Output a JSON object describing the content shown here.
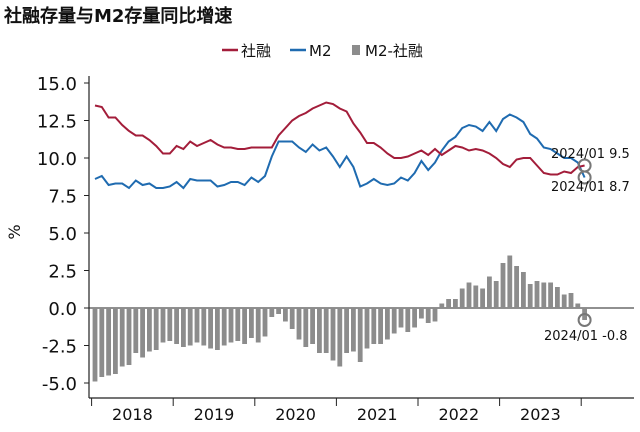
{
  "title": "社融存量与M2存量同比增速",
  "chart_data": {
    "type": "line+bar",
    "title": "社融存量与M2存量同比增速",
    "ylabel": "%",
    "ylim": [
      -5.0,
      15.0
    ],
    "yticks": [
      15.0,
      12.5,
      10.0,
      7.5,
      5.0,
      2.5,
      0.0,
      -2.5,
      -5.0
    ],
    "ytick_labels": [
      "15.0",
      "12.5",
      "10.0",
      "7.5",
      "5.0",
      "2.5",
      "0.0",
      "-2.5",
      "-5.0"
    ],
    "year_labels": [
      "2018",
      "2019",
      "2020",
      "2021",
      "2022",
      "2023"
    ],
    "x_start": "2018/01",
    "x_end": "2024/01",
    "colors": {
      "social_financing": "#a31d3a",
      "m2": "#1f6bb0",
      "diff": "#8c8c8c"
    },
    "series": [
      {
        "name": "社融",
        "type": "line",
        "values": [
          13.5,
          13.4,
          12.7,
          12.7,
          12.2,
          11.8,
          11.5,
          11.5,
          11.2,
          10.8,
          10.3,
          10.3,
          10.8,
          10.6,
          11.1,
          10.8,
          11.0,
          11.2,
          10.9,
          10.7,
          10.7,
          10.6,
          10.6,
          10.7,
          10.7,
          10.7,
          10.7,
          11.5,
          12.0,
          12.5,
          12.8,
          13.0,
          13.3,
          13.5,
          13.7,
          13.6,
          13.3,
          13.1,
          12.3,
          11.7,
          11.0,
          11.0,
          10.7,
          10.3,
          10.0,
          10.0,
          10.1,
          10.3,
          10.5,
          10.2,
          10.6,
          10.2,
          10.5,
          10.8,
          10.7,
          10.5,
          10.6,
          10.5,
          10.3,
          10.0,
          9.6,
          9.4,
          9.9,
          10.0,
          10.0,
          9.5,
          9.0,
          8.9,
          8.9,
          9.1,
          9.0,
          9.4,
          9.5
        ]
      },
      {
        "name": "M2",
        "type": "line",
        "values": [
          8.6,
          8.8,
          8.2,
          8.3,
          8.3,
          8.0,
          8.5,
          8.2,
          8.3,
          8.0,
          8.0,
          8.1,
          8.4,
          8.0,
          8.6,
          8.5,
          8.5,
          8.5,
          8.1,
          8.2,
          8.4,
          8.4,
          8.2,
          8.7,
          8.4,
          8.8,
          10.1,
          11.1,
          11.1,
          11.1,
          10.7,
          10.4,
          10.9,
          10.5,
          10.7,
          10.1,
          9.4,
          10.1,
          9.4,
          8.1,
          8.3,
          8.6,
          8.3,
          8.2,
          8.3,
          8.7,
          8.5,
          9.0,
          9.8,
          9.2,
          9.7,
          10.5,
          11.1,
          11.4,
          12.0,
          12.2,
          12.1,
          11.8,
          12.4,
          11.8,
          12.6,
          12.9,
          12.7,
          12.4,
          11.6,
          11.3,
          10.7,
          10.6,
          10.3,
          10.0,
          10.0,
          9.7,
          8.7
        ]
      },
      {
        "name": "M2-社融",
        "type": "bar",
        "values": [
          -4.9,
          -4.6,
          -4.5,
          -4.4,
          -3.9,
          -3.8,
          -3.0,
          -3.3,
          -2.9,
          -2.8,
          -2.3,
          -2.2,
          -2.4,
          -2.6,
          -2.5,
          -2.3,
          -2.5,
          -2.7,
          -2.8,
          -2.5,
          -2.3,
          -2.2,
          -2.4,
          -2.0,
          -2.3,
          -1.9,
          -0.6,
          -0.4,
          -0.9,
          -1.4,
          -2.1,
          -2.6,
          -2.4,
          -3.0,
          -3.0,
          -3.5,
          -3.9,
          -3.0,
          -2.9,
          -3.6,
          -2.7,
          -2.4,
          -2.4,
          -2.1,
          -1.7,
          -1.3,
          -1.6,
          -1.3,
          -0.7,
          -1.0,
          -0.9,
          0.3,
          0.6,
          0.6,
          1.3,
          1.7,
          1.5,
          1.3,
          2.1,
          1.8,
          3.0,
          3.5,
          2.8,
          2.4,
          1.6,
          1.8,
          1.7,
          1.7,
          1.4,
          0.9,
          1.0,
          0.3,
          -0.8
        ]
      }
    ],
    "annotations": [
      {
        "label": "2024/01",
        "value_text": "9.5",
        "series": "社融",
        "value": 9.5
      },
      {
        "label": "2024/01",
        "value_text": "8.7",
        "series": "M2",
        "value": 8.7
      },
      {
        "label": "2024/01",
        "value_text": "-0.8",
        "series": "M2-社融",
        "value": -0.8
      }
    ]
  }
}
